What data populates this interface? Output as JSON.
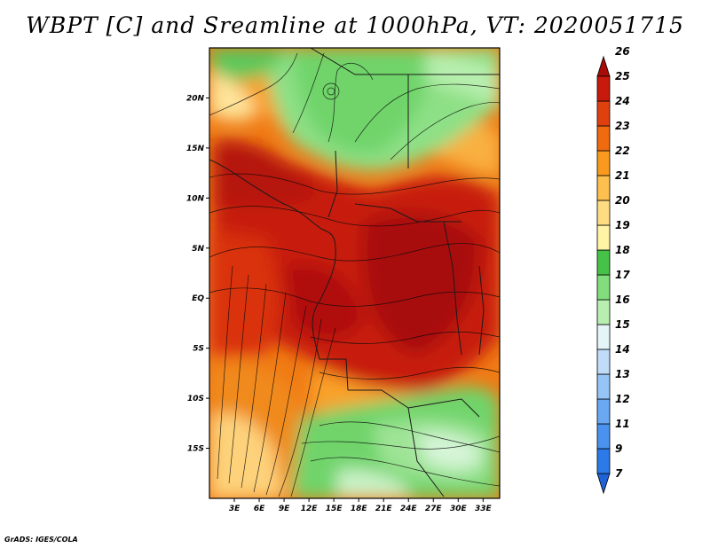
{
  "title": "WBPT [C] and Sreamline at 1000hPa, VT: 2020051715",
  "credit": "GrADS: IGES/COLA",
  "latitude_labels": [
    "20N",
    "15N",
    "10N",
    "5N",
    "EQ",
    "5S",
    "10S",
    "15S"
  ],
  "latitude_values": [
    20,
    15,
    10,
    5,
    0,
    -5,
    -10,
    -15
  ],
  "longitude_labels": [
    "3E",
    "6E",
    "9E",
    "12E",
    "15E",
    "18E",
    "21E",
    "24E",
    "27E",
    "30E",
    "33E"
  ],
  "longitude_values": [
    3,
    6,
    9,
    12,
    15,
    18,
    21,
    24,
    27,
    30,
    33
  ],
  "map_extent": {
    "lon_min": 0,
    "lon_max": 35,
    "lat_min": -20,
    "lat_max": 25
  },
  "colorbar": {
    "labels": [
      "7",
      "9",
      "11",
      "12",
      "13",
      "14",
      "15",
      "16",
      "17",
      "18",
      "19",
      "20",
      "21",
      "22",
      "23",
      "24",
      "25",
      "26"
    ],
    "colors": [
      "#1f62d8",
      "#2c7ae8",
      "#4a92ee",
      "#6aa8f2",
      "#95c4f6",
      "#c0dcf8",
      "#e4f4f7",
      "#b8efb0",
      "#82de7c",
      "#47c248",
      "#fff3a6",
      "#fedc82",
      "#fdbf4d",
      "#f99a1f",
      "#f06a10",
      "#e0400e",
      "#c81a0c",
      "#a80c08"
    ]
  }
}
